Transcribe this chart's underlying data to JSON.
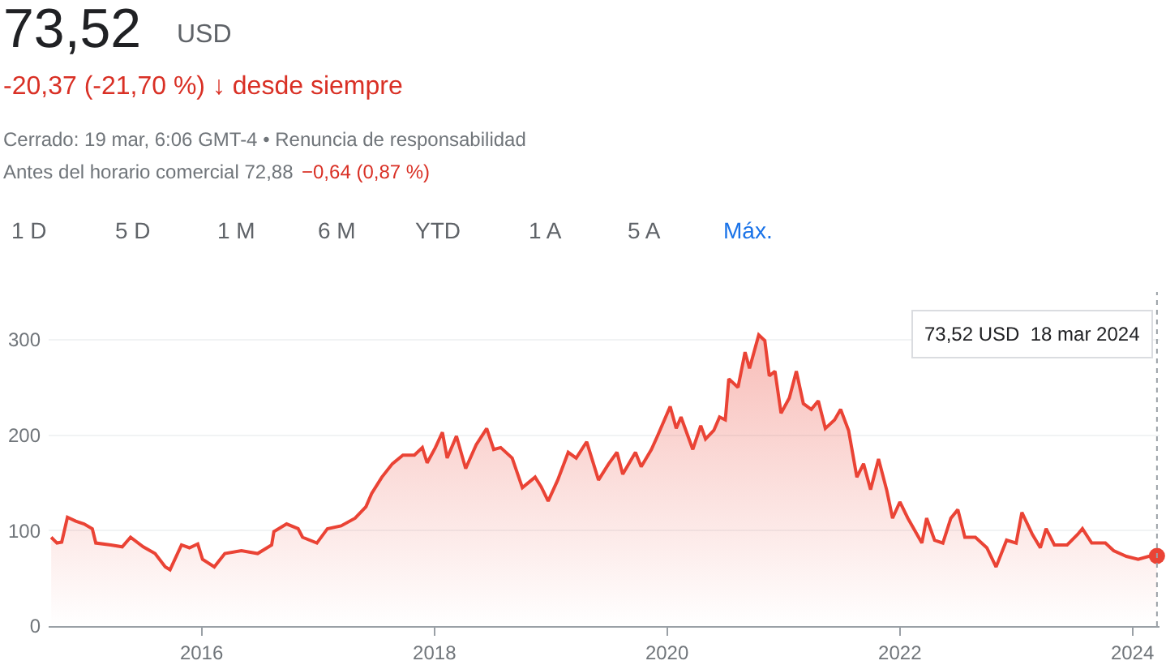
{
  "chart_data": {
    "type": "area",
    "annotations": [
      "73,52",
      "USD",
      "-20,37 (-21,70 %) ↓ desde siempre",
      "Cerrado: 19 mar, 6:06 GMT-4 • Renuncia de responsabilidad",
      "Antes del horario comercial 72,88",
      "−0,64 (0,87 %)",
      "1 D",
      "5 D",
      "1 M",
      "6 M",
      "YTD",
      "1 A",
      "5 A",
      "Máx.",
      "73,52 USD  18 mar 2024"
    ],
    "series": [
      {
        "color": "#ea4335",
        "marker": "none",
        "x": [
          "2014-09-16",
          "2014-10-04",
          "2014-10-19",
          "2014-11-06",
          "2014-12-02",
          "2014-12-28",
          "2015-01-23",
          "2015-02-03",
          "2015-03-22",
          "2015-04-27",
          "2015-05-23",
          "2015-07-02",
          "2015-08-08",
          "2015-09-09",
          "2015-09-24",
          "2015-10-30",
          "2015-11-24",
          "2015-12-20",
          "2016-01-04",
          "2016-02-10",
          "2016-03-14",
          "2016-05-05",
          "2016-06-25",
          "2016-08-08",
          "2016-08-15",
          "2016-09-24",
          "2016-10-30",
          "2016-11-13",
          "2016-12-28",
          "2017-01-30",
          "2017-03-14",
          "2017-04-27",
          "2017-05-31",
          "2017-06-18",
          "2017-07-20",
          "2017-08-22",
          "2017-09-24",
          "2017-10-30",
          "2017-11-24",
          "2017-12-09",
          "2018-01-04",
          "2018-01-26",
          "2018-02-10",
          "2018-03-11",
          "2018-04-09",
          "2018-05-12",
          "2018-06-14",
          "2018-07-06",
          "2018-07-28",
          "2018-09-02",
          "2018-10-04",
          "2018-11-13",
          "2018-12-02",
          "2018-12-24",
          "2019-01-23",
          "2019-02-25",
          "2019-03-22",
          "2019-04-16",
          "2019-04-24",
          "2019-05-31",
          "2019-07-02",
          "2019-07-28",
          "2019-08-15",
          "2019-09-24",
          "2019-10-12",
          "2019-11-13",
          "2019-12-02",
          "2020-01-11",
          "2020-01-30",
          "2020-02-14",
          "2020-03-22",
          "2020-04-16",
          "2020-05-01",
          "2020-05-27",
          "2020-06-14",
          "2020-07-02",
          "2020-07-13",
          "2020-08-11",
          "2020-09-02",
          "2020-09-16",
          "2020-10-15",
          "2020-11-03",
          "2020-11-17",
          "2020-12-05",
          "2020-12-24",
          "2021-01-19",
          "2021-02-10",
          "2021-03-04",
          "2021-03-29",
          "2021-04-20",
          "2021-05-12",
          "2021-06-10",
          "2021-06-29",
          "2021-07-24",
          "2021-08-19",
          "2021-09-09",
          "2021-10-01",
          "2021-10-26",
          "2021-11-21",
          "2021-12-09",
          "2022-01-01",
          "2022-01-26",
          "2022-03-11",
          "2022-03-26",
          "2022-04-20",
          "2022-05-16",
          "2022-06-10",
          "2022-07-02",
          "2022-07-24",
          "2022-08-26",
          "2022-10-01",
          "2022-10-30",
          "2022-12-02",
          "2023-01-01",
          "2023-01-19",
          "2023-02-21",
          "2023-03-18",
          "2023-04-05",
          "2023-05-01",
          "2023-06-10",
          "2023-07-13",
          "2023-07-28",
          "2023-08-26",
          "2023-10-08",
          "2023-11-03",
          "2023-12-13",
          "2024-01-19",
          "2024-02-21",
          "2024-03-18"
        ],
        "values": [
          93,
          87,
          88,
          114,
          110,
          107,
          102,
          87,
          85,
          83,
          93,
          83,
          76,
          62,
          59,
          85,
          82,
          86,
          70,
          62,
          76,
          79,
          76,
          85,
          99,
          107,
          102,
          93,
          87,
          102,
          105,
          113,
          125,
          139,
          156,
          170,
          179,
          179,
          187,
          171,
          187,
          203,
          176,
          199,
          165,
          190,
          207,
          185,
          187,
          176,
          145,
          156,
          146,
          131,
          153,
          182,
          176,
          189,
          193,
          153,
          170,
          182,
          159,
          182,
          167,
          185,
          199,
          230,
          207,
          219,
          185,
          210,
          196,
          205,
          219,
          216,
          259,
          250,
          287,
          270,
          305,
          299,
          262,
          267,
          223,
          239,
          267,
          233,
          227,
          236,
          207,
          216,
          227,
          205,
          156,
          170,
          143,
          175,
          142,
          113,
          130,
          113,
          87,
          113,
          90,
          87,
          113,
          122,
          93,
          93,
          82,
          62,
          90,
          87,
          119,
          96,
          82,
          102,
          85,
          85,
          96,
          102,
          87,
          87,
          79,
          73,
          70,
          73,
          73.52
        ]
      },
      {
        "type": "scatter",
        "color": "#ea4335",
        "marker": "circle",
        "x": [
          "2024-03-18"
        ],
        "values": [
          73.52
        ]
      }
    ],
    "xlim": [
      "2014-09-08",
      "2024-03-26"
    ],
    "xticks": [
      {
        "value": "2016-01-01",
        "label": "2016"
      },
      {
        "value": "2018-01-01",
        "label": "2018"
      },
      {
        "value": "2020-01-01",
        "label": "2020"
      },
      {
        "value": "2022-01-01",
        "label": "2022"
      },
      {
        "value": "2024-01-01",
        "label": "2024"
      }
    ],
    "ylim": [
      0,
      350
    ],
    "yticks": [
      0,
      100,
      200,
      300
    ],
    "ref_lines": [
      {
        "axis": "x",
        "value": "2024-03-18",
        "label": null,
        "color": "#9aa0a6",
        "line_style": "dotted"
      }
    ],
    "grid": "y"
  }
}
